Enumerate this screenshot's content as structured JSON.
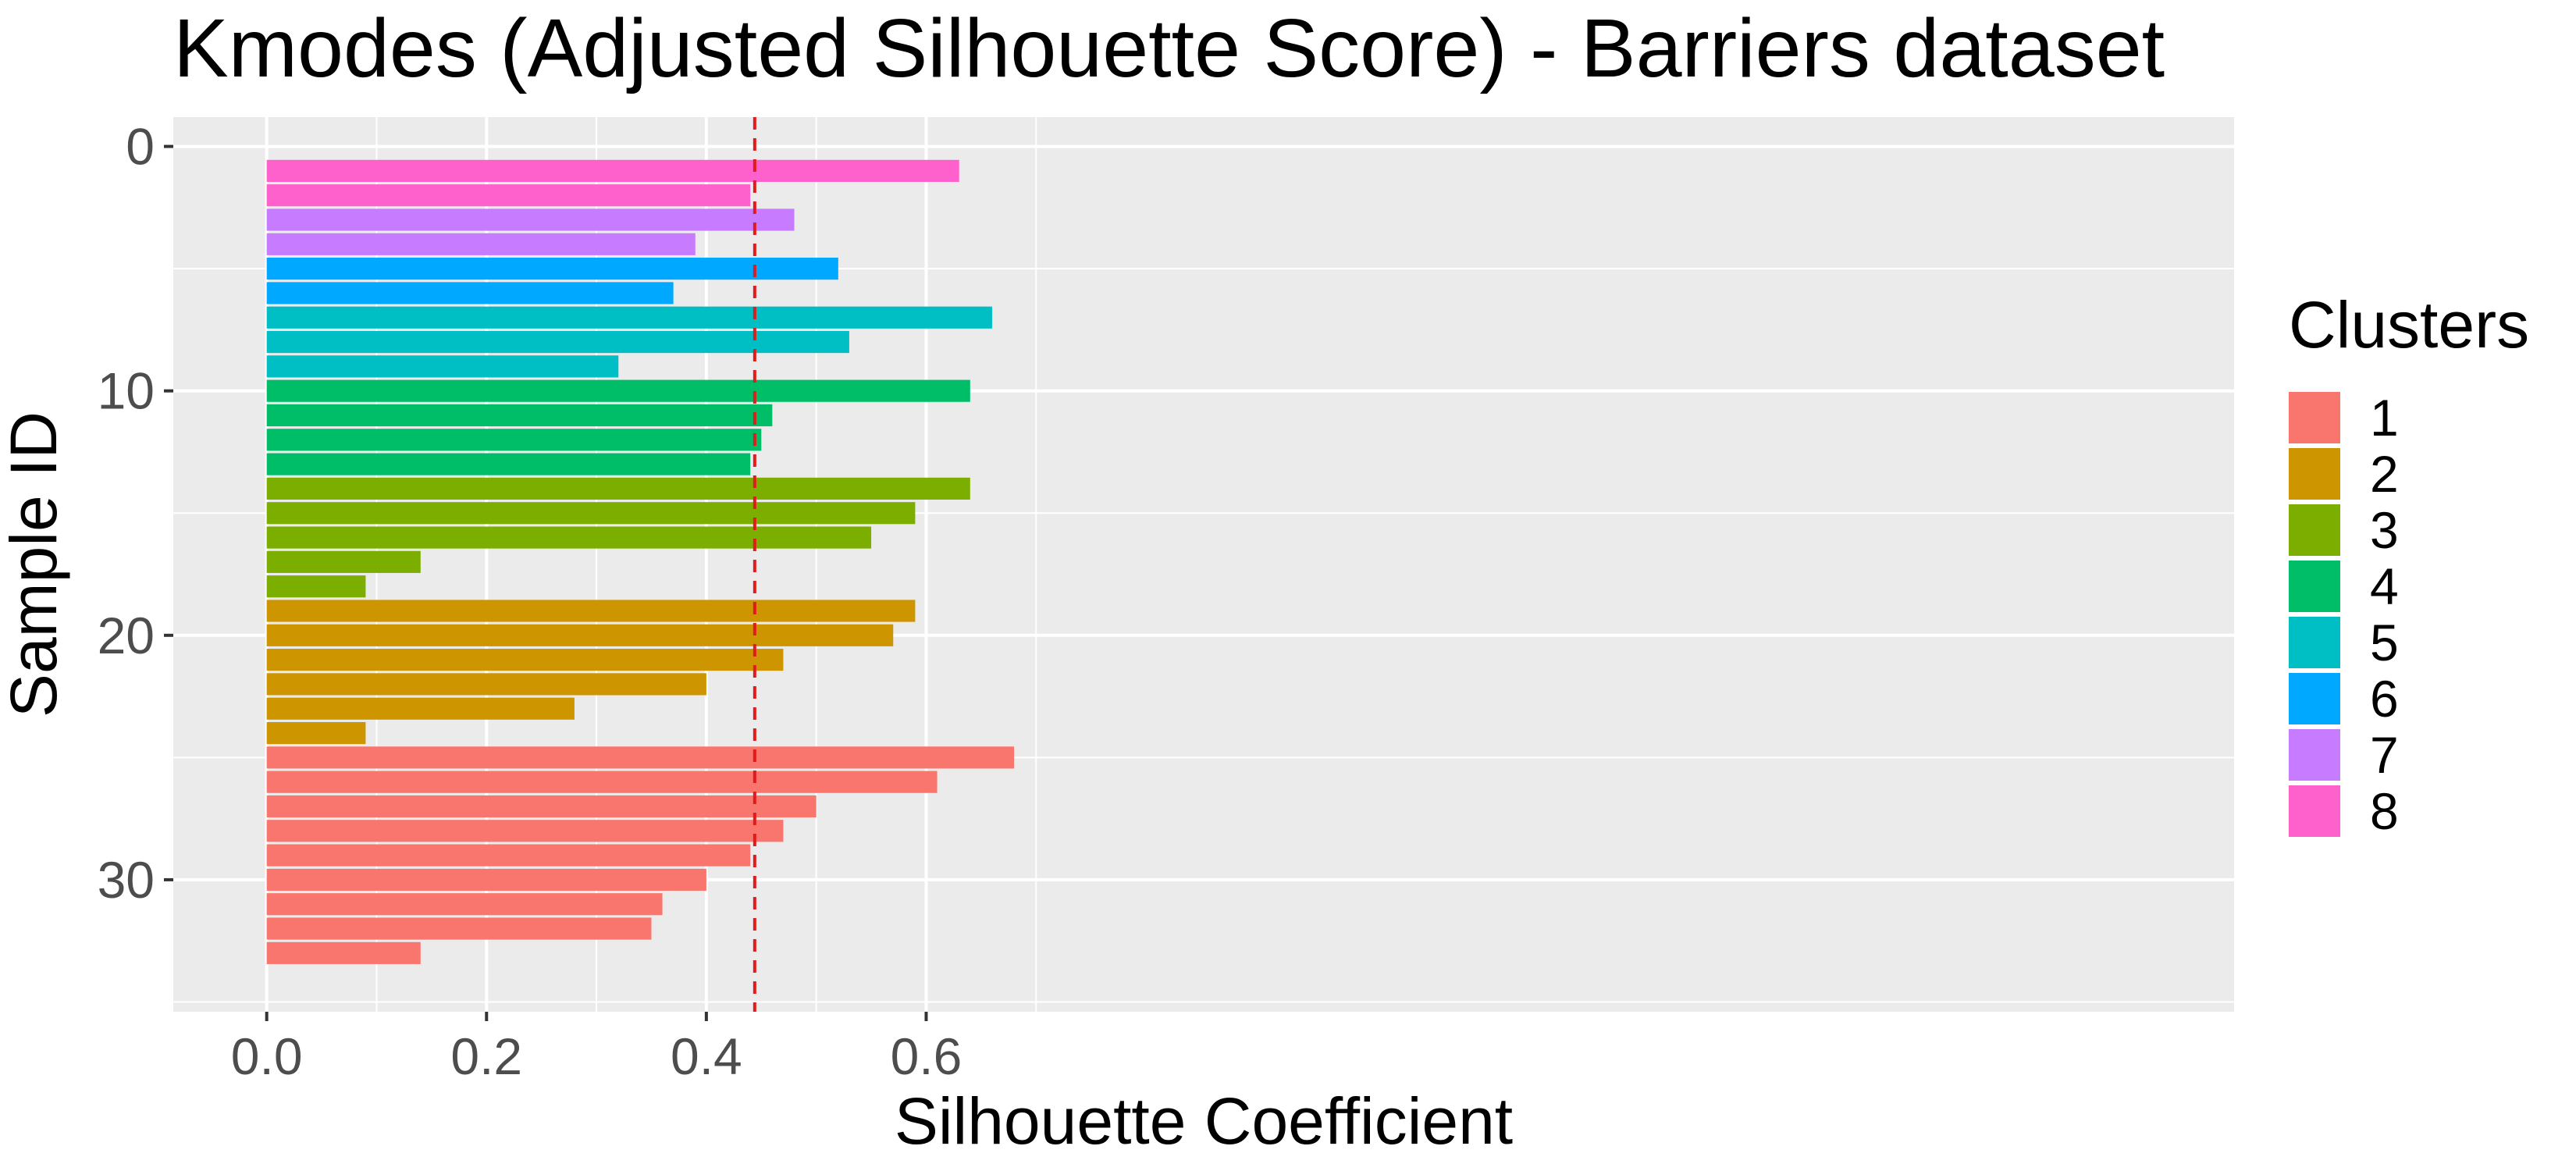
{
  "chart_data": {
    "type": "bar",
    "orientation": "horizontal",
    "title": "Kmodes (Adjusted Silhouette Score) - Barriers dataset",
    "xlabel": "Silhouette Coefficient",
    "ylabel": "Sample ID",
    "xlim": [
      -0.085,
      1.79
    ],
    "ylim": [
      -1.2,
      35.4
    ],
    "y_reversed": true,
    "x_ticks": [
      "0.0",
      "0.2",
      "0.4",
      "0.6"
    ],
    "y_ticks": [
      "0",
      "10",
      "20",
      "30"
    ],
    "grid": true,
    "legend": {
      "title": "Clusters",
      "position": "right",
      "items": [
        "1",
        "2",
        "3",
        "4",
        "5",
        "6",
        "7",
        "8"
      ]
    },
    "colors": {
      "1": "#F8766D",
      "2": "#CD9600",
      "3": "#7CAE00",
      "4": "#00BE67",
      "5": "#00BFC4",
      "6": "#00A9FF",
      "7": "#C77CFF",
      "8": "#FF61CC"
    },
    "reference_line": {
      "value": 0.444,
      "color": "#E31A1C",
      "style": "dashed"
    },
    "bars": [
      {
        "sample": 1,
        "cluster": "8",
        "value": 0.63
      },
      {
        "sample": 2,
        "cluster": "8",
        "value": 0.44
      },
      {
        "sample": 3,
        "cluster": "7",
        "value": 0.48
      },
      {
        "sample": 4,
        "cluster": "7",
        "value": 0.39
      },
      {
        "sample": 5,
        "cluster": "6",
        "value": 0.52
      },
      {
        "sample": 6,
        "cluster": "6",
        "value": 0.37
      },
      {
        "sample": 7,
        "cluster": "5",
        "value": 0.66
      },
      {
        "sample": 8,
        "cluster": "5",
        "value": 0.53
      },
      {
        "sample": 9,
        "cluster": "5",
        "value": 0.32
      },
      {
        "sample": 10,
        "cluster": "4",
        "value": 0.64
      },
      {
        "sample": 11,
        "cluster": "4",
        "value": 0.46
      },
      {
        "sample": 12,
        "cluster": "4",
        "value": 0.45
      },
      {
        "sample": 13,
        "cluster": "4",
        "value": 0.44
      },
      {
        "sample": 14,
        "cluster": "3",
        "value": 0.64
      },
      {
        "sample": 15,
        "cluster": "3",
        "value": 0.59
      },
      {
        "sample": 16,
        "cluster": "3",
        "value": 0.55
      },
      {
        "sample": 17,
        "cluster": "3",
        "value": 0.14
      },
      {
        "sample": 18,
        "cluster": "3",
        "value": 0.09
      },
      {
        "sample": 19,
        "cluster": "2",
        "value": 0.59
      },
      {
        "sample": 20,
        "cluster": "2",
        "value": 0.57
      },
      {
        "sample": 21,
        "cluster": "2",
        "value": 0.47
      },
      {
        "sample": 22,
        "cluster": "2",
        "value": 0.4
      },
      {
        "sample": 23,
        "cluster": "2",
        "value": 0.28
      },
      {
        "sample": 24,
        "cluster": "2",
        "value": 0.09
      },
      {
        "sample": 25,
        "cluster": "1",
        "value": 0.68
      },
      {
        "sample": 26,
        "cluster": "1",
        "value": 0.61
      },
      {
        "sample": 27,
        "cluster": "1",
        "value": 0.5
      },
      {
        "sample": 28,
        "cluster": "1",
        "value": 0.47
      },
      {
        "sample": 29,
        "cluster": "1",
        "value": 0.44
      },
      {
        "sample": 30,
        "cluster": "1",
        "value": 0.4
      },
      {
        "sample": 31,
        "cluster": "1",
        "value": 0.36
      },
      {
        "sample": 32,
        "cluster": "1",
        "value": 0.35
      },
      {
        "sample": 33,
        "cluster": "1",
        "value": 0.14
      }
    ]
  }
}
